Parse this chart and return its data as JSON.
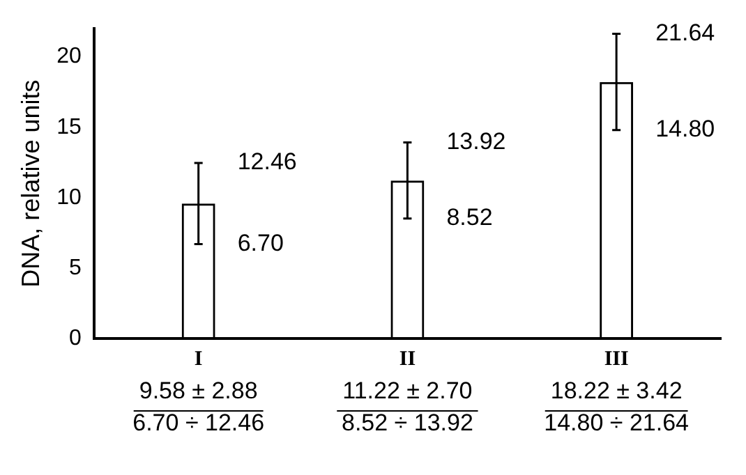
{
  "chart_data": {
    "type": "bar",
    "ylabel": "DNA, relative units",
    "categories": [
      "I",
      "II",
      "III"
    ],
    "values": [
      9.58,
      11.22,
      18.22
    ],
    "color": "#000000",
    "errors": [
      [
        6.7,
        12.46
      ],
      [
        8.52,
        13.92
      ],
      [
        14.8,
        21.64
      ]
    ],
    "ylim": [
      0,
      22
    ],
    "yticks": [
      0,
      5,
      10,
      15,
      20
    ],
    "grid": false,
    "legend": false,
    "annotations": [
      {
        "text": "12.46",
        "x": "I",
        "y": 12.46
      },
      {
        "text": "6.70",
        "x": "I",
        "y": 6.7
      },
      {
        "text": "13.92",
        "x": "II",
        "y": 13.92
      },
      {
        "text": "8.52",
        "x": "II",
        "y": 8.52
      },
      {
        "text": "21.64",
        "x": "III",
        "y": 21.64
      },
      {
        "text": "14.80",
        "x": "III",
        "y": 14.8
      },
      "9.58 ± 2.88",
      "6.70 ÷ 12.46",
      "11.22 ± 2.70",
      "8.52 ÷ 13.92",
      "18.22 ± 3.42",
      "14.80 ÷ 21.64"
    ]
  }
}
